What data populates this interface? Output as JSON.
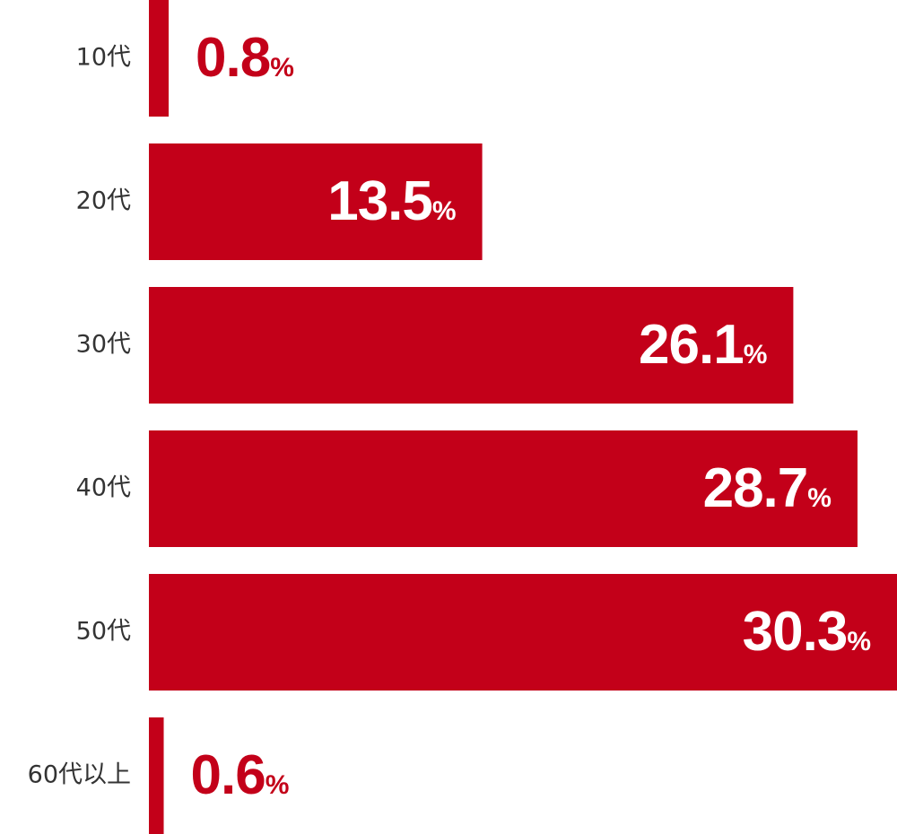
{
  "chart_data": {
    "type": "bar",
    "orientation": "horizontal",
    "color": "#c30019",
    "categories": [
      "10代",
      "20代",
      "30代",
      "40代",
      "50代",
      "60代以上"
    ],
    "values": [
      0.8,
      13.5,
      26.1,
      28.7,
      30.3,
      0.6
    ],
    "value_labels": [
      "0.8%",
      "13.5%",
      "26.1%",
      "28.7%",
      "30.3%",
      "0.6%"
    ]
  }
}
